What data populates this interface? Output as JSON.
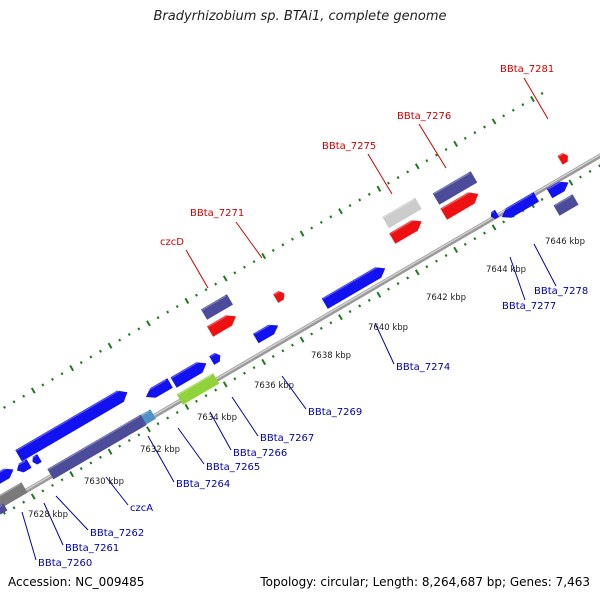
{
  "title": "Bradyrhizobium sp. BTAi1, complete genome",
  "footer": {
    "accession": "Accession: NC_009485",
    "summary": "Topology: circular; Length: 8,264,687 bp; Genes: 7,463"
  },
  "colors": {
    "backbone": "#9a9a9a",
    "tick": "#1f7a1f",
    "gene_blue": "#1212f0",
    "gene_navy": "#4d4c9a",
    "gene_red": "#ee1111",
    "gene_gray": "#cccccc",
    "gene_dark_gray": "#7a7a7a",
    "gene_lightblue": "#4f93c6",
    "gene_green": "#8fd23a",
    "label_red": "#cc0000",
    "label_blue": "#0000aa"
  },
  "scale_labels": [
    "7628 kbp",
    "7630 kbp",
    "7632 kbp",
    "7634 kbp",
    "7636 kbp",
    "7638 kbp",
    "7640 kbp",
    "7642 kbp",
    "7644 kbp",
    "7646 kbp"
  ],
  "upper_labels": [
    "czcD",
    "BBta_7271",
    "BBta_7275",
    "BBta_7276",
    "BBta_7281"
  ],
  "lower_labels": [
    "BBta_7260",
    "BBta_7261",
    "BBta_7262",
    "czcA",
    "BBta_7264",
    "BBta_7265",
    "BBta_7266",
    "BBta_7267",
    "BBta_7269",
    "BBta_7274",
    "BBta_7277",
    "BBta_7278"
  ]
}
